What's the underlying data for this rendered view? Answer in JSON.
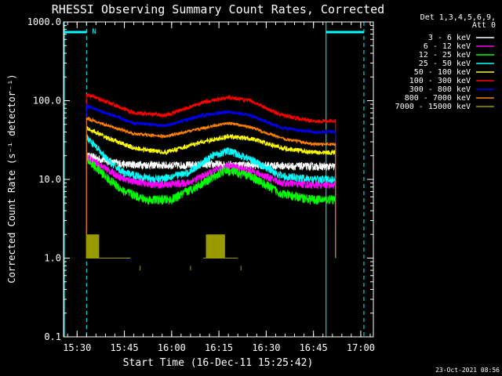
{
  "chart_data": {
    "type": "line",
    "title": "RHESSI Observing Summary Count Rates, Corrected",
    "xlabel": "Start Time (16-Dec-11 15:25:42)",
    "ylabel": "Corrected Count Rate (s⁻¹ detector⁻¹)",
    "y_scale": "log",
    "ylim": [
      0.1,
      1000.0
    ],
    "xlim": [
      "15:25:42",
      "17:04:00"
    ],
    "x_ticks": [
      "15:30",
      "15:45",
      "16:00",
      "16:15",
      "16:30",
      "16:45",
      "17:00"
    ],
    "y_ticks": [
      "0.1",
      "1.0",
      "10.0",
      "100.0",
      "1000.0"
    ],
    "grid": false,
    "legend_position": "top-right",
    "legend_title": [
      "Det 1,3,4,5,6,9,",
      "Att 0"
    ],
    "footer_timestamp": "23-Oct-2021 08:56",
    "night_markers": [
      {
        "start": "15:25:42",
        "end": "15:33:00",
        "label": "N"
      },
      {
        "start": "16:49:00",
        "end": "17:01:00",
        "label": ""
      }
    ],
    "data_interval": [
      "15:33:00",
      "16:52:00"
    ],
    "series": [
      {
        "name": "3 - 6 keV",
        "color": "#ffffff",
        "noise": 0.05,
        "points": [
          [
            "15:33",
            20
          ],
          [
            "15:40",
            17
          ],
          [
            "15:45",
            15.5
          ],
          [
            "16:00",
            15
          ],
          [
            "16:15",
            15.5
          ],
          [
            "16:30",
            15
          ],
          [
            "16:45",
            14.5
          ],
          [
            "16:52",
            14.5
          ]
        ]
      },
      {
        "name": "6 - 12 keV",
        "color": "#ff00ff",
        "noise": 0.05,
        "points": [
          [
            "15:33",
            19
          ],
          [
            "15:40",
            13
          ],
          [
            "15:45",
            10
          ],
          [
            "15:55",
            8.5
          ],
          [
            "16:05",
            9
          ],
          [
            "16:12",
            12
          ],
          [
            "16:18",
            15
          ],
          [
            "16:25",
            13
          ],
          [
            "16:35",
            9
          ],
          [
            "16:45",
            8.5
          ],
          [
            "16:52",
            8.5
          ]
        ]
      },
      {
        "name": "12 - 25 keV",
        "color": "#00ff00",
        "noise": 0.06,
        "points": [
          [
            "15:33",
            18
          ],
          [
            "15:40",
            10
          ],
          [
            "15:45",
            7
          ],
          [
            "15:52",
            5.5
          ],
          [
            "16:00",
            5.5
          ],
          [
            "16:10",
            9
          ],
          [
            "16:17",
            13
          ],
          [
            "16:25",
            11
          ],
          [
            "16:35",
            6.5
          ],
          [
            "16:45",
            5.5
          ],
          [
            "16:52",
            5.5
          ]
        ]
      },
      {
        "name": "25 - 50 keV",
        "color": "#00ffff",
        "noise": 0.05,
        "points": [
          [
            "15:33",
            35
          ],
          [
            "15:40",
            17
          ],
          [
            "15:45",
            12
          ],
          [
            "15:55",
            10
          ],
          [
            "16:05",
            12
          ],
          [
            "16:13",
            20
          ],
          [
            "16:18",
            23
          ],
          [
            "16:25",
            18
          ],
          [
            "16:35",
            11
          ],
          [
            "16:45",
            10
          ],
          [
            "16:52",
            10
          ]
        ]
      },
      {
        "name": "50 - 100 keV",
        "color": "#ffff00",
        "noise": 0.03,
        "points": [
          [
            "15:33",
            45
          ],
          [
            "15:40",
            33
          ],
          [
            "15:48",
            25
          ],
          [
            "15:58",
            22
          ],
          [
            "16:10",
            30
          ],
          [
            "16:18",
            35
          ],
          [
            "16:25",
            33
          ],
          [
            "16:35",
            25
          ],
          [
            "16:45",
            22
          ],
          [
            "16:52",
            22
          ]
        ]
      },
      {
        "name": "100 - 300 keV",
        "color": "#ff0000",
        "noise": 0.025,
        "points": [
          [
            "15:33",
            120
          ],
          [
            "15:40",
            95
          ],
          [
            "15:48",
            70
          ],
          [
            "15:58",
            65
          ],
          [
            "16:10",
            95
          ],
          [
            "16:18",
            110
          ],
          [
            "16:25",
            100
          ],
          [
            "16:35",
            65
          ],
          [
            "16:45",
            55
          ],
          [
            "16:52",
            55
          ]
        ]
      },
      {
        "name": "300 - 800 keV",
        "color": "#0000ff",
        "noise": 0.02,
        "points": [
          [
            "15:33",
            85
          ],
          [
            "15:40",
            68
          ],
          [
            "15:48",
            52
          ],
          [
            "15:58",
            48
          ],
          [
            "16:10",
            65
          ],
          [
            "16:18",
            72
          ],
          [
            "16:25",
            65
          ],
          [
            "16:35",
            45
          ],
          [
            "16:45",
            40
          ],
          [
            "16:52",
            40
          ]
        ]
      },
      {
        "name": "800 - 7000 keV",
        "color": "#ff8000",
        "noise": 0.02,
        "points": [
          [
            "15:33",
            60
          ],
          [
            "15:40",
            48
          ],
          [
            "15:48",
            38
          ],
          [
            "15:58",
            35
          ],
          [
            "16:10",
            45
          ],
          [
            "16:18",
            52
          ],
          [
            "16:25",
            46
          ],
          [
            "16:35",
            33
          ],
          [
            "16:45",
            28
          ],
          [
            "16:52",
            28
          ]
        ]
      },
      {
        "name": "7000 - 15000 keV",
        "color": "#999900",
        "noise": 0,
        "points": [
          [
            "15:33",
            1.0
          ],
          [
            "15:38",
            1.0
          ],
          [
            "15:45",
            1.0
          ],
          [
            "16:10",
            1.0
          ],
          [
            "16:16",
            1.0
          ],
          [
            "16:22",
            1.0
          ],
          [
            "16:52",
            1.0
          ]
        ]
      }
    ]
  }
}
